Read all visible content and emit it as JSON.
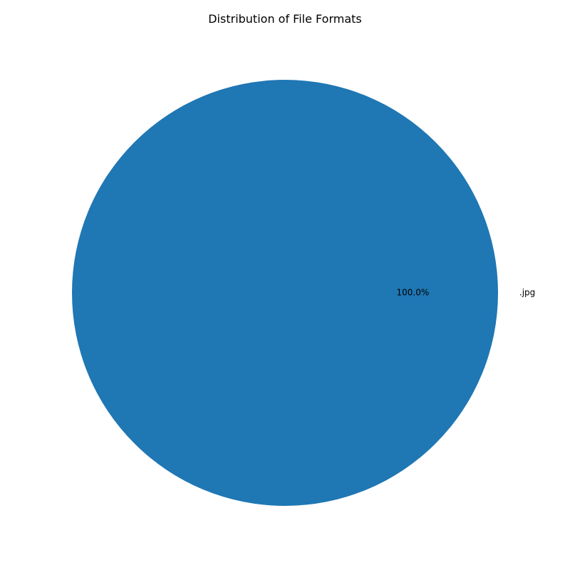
{
  "chart_data": {
    "type": "pie",
    "title": "Distribution of File Formats",
    "slices": [
      {
        "label": ".jpg",
        "value": 100.0,
        "percent_label": "100.0%",
        "color": "#1f77b4"
      }
    ]
  }
}
